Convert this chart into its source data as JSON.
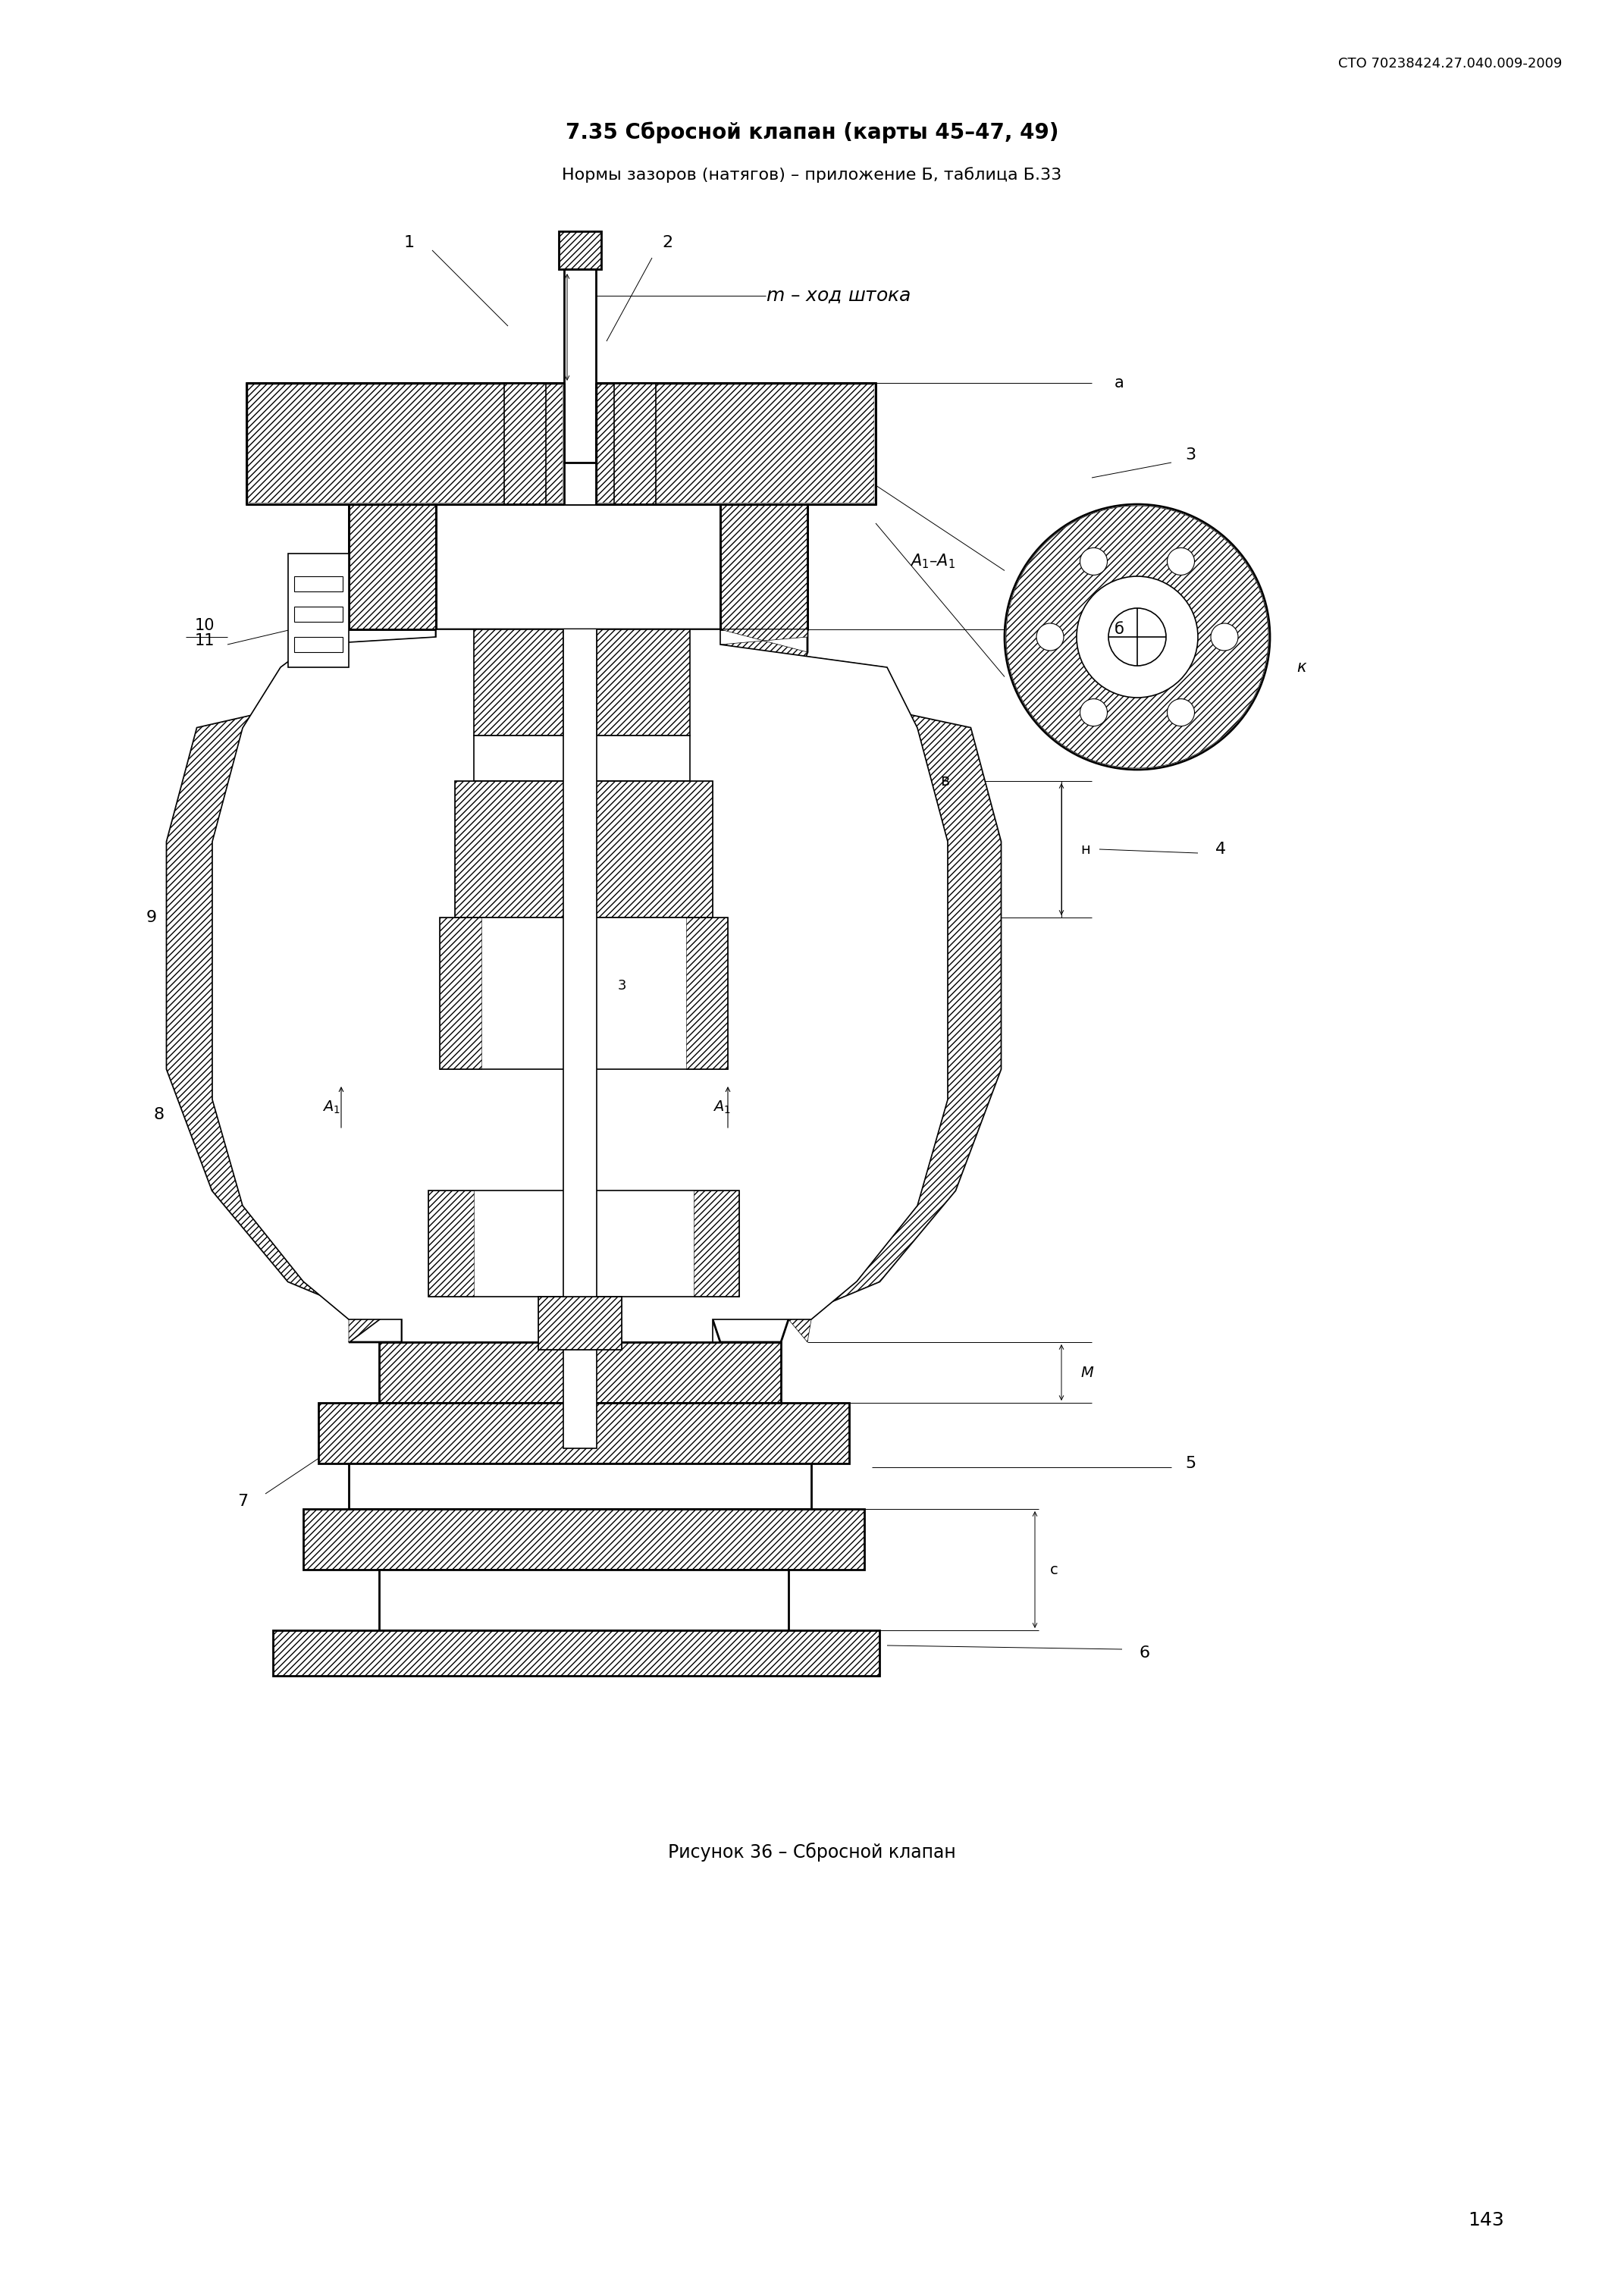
{
  "page_title": "СТО 70238424.27.040.009-2009",
  "section_title": "7.35 Сбросной клапан (карты 45–47, 49)",
  "subtitle": "Нормы зазоров (натягов) – приложение Б, таблица Б.33",
  "figure_caption": "Рисунок 36 – Сбросной клапан",
  "page_number": "143",
  "bg_color": "#ffffff",
  "lw_thick": 2.0,
  "lw_main": 1.2,
  "lw_thin": 0.7
}
